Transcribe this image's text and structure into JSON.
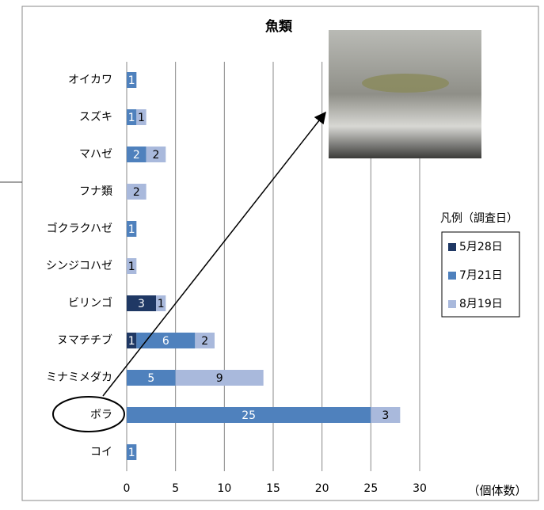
{
  "chart_data": {
    "type": "stacked_barh",
    "title": "魚類",
    "x_label": "（個体数）",
    "legend_title": "凡例（調査日）",
    "categories": [
      "オイカワ",
      "スズキ",
      "マハゼ",
      "フナ類",
      "ゴクラクハゼ",
      "シンジコハゼ",
      "ビリンゴ",
      "ヌマチチブ",
      "ミナミメダカ",
      "ボラ",
      "コイ"
    ],
    "series": [
      {
        "name": "5月28日",
        "color": "#1f3864",
        "label_color": "#ffffff",
        "values": [
          null,
          null,
          null,
          null,
          null,
          null,
          3,
          1,
          null,
          null,
          null
        ]
      },
      {
        "name": "7月21日",
        "color": "#4f81bd",
        "label_color": "#ffffff",
        "values": [
          1,
          1,
          2,
          null,
          1,
          null,
          null,
          6,
          5,
          25,
          1
        ]
      },
      {
        "name": "8月19日",
        "color": "#a9b9dc",
        "label_color": "#000000",
        "values": [
          null,
          1,
          2,
          2,
          null,
          1,
          1,
          2,
          9,
          3,
          null
        ]
      }
    ],
    "xlim": [
      0,
      30
    ],
    "xticks": [
      0,
      5,
      10,
      15,
      20,
      25,
      30
    ],
    "grid": true
  }
}
